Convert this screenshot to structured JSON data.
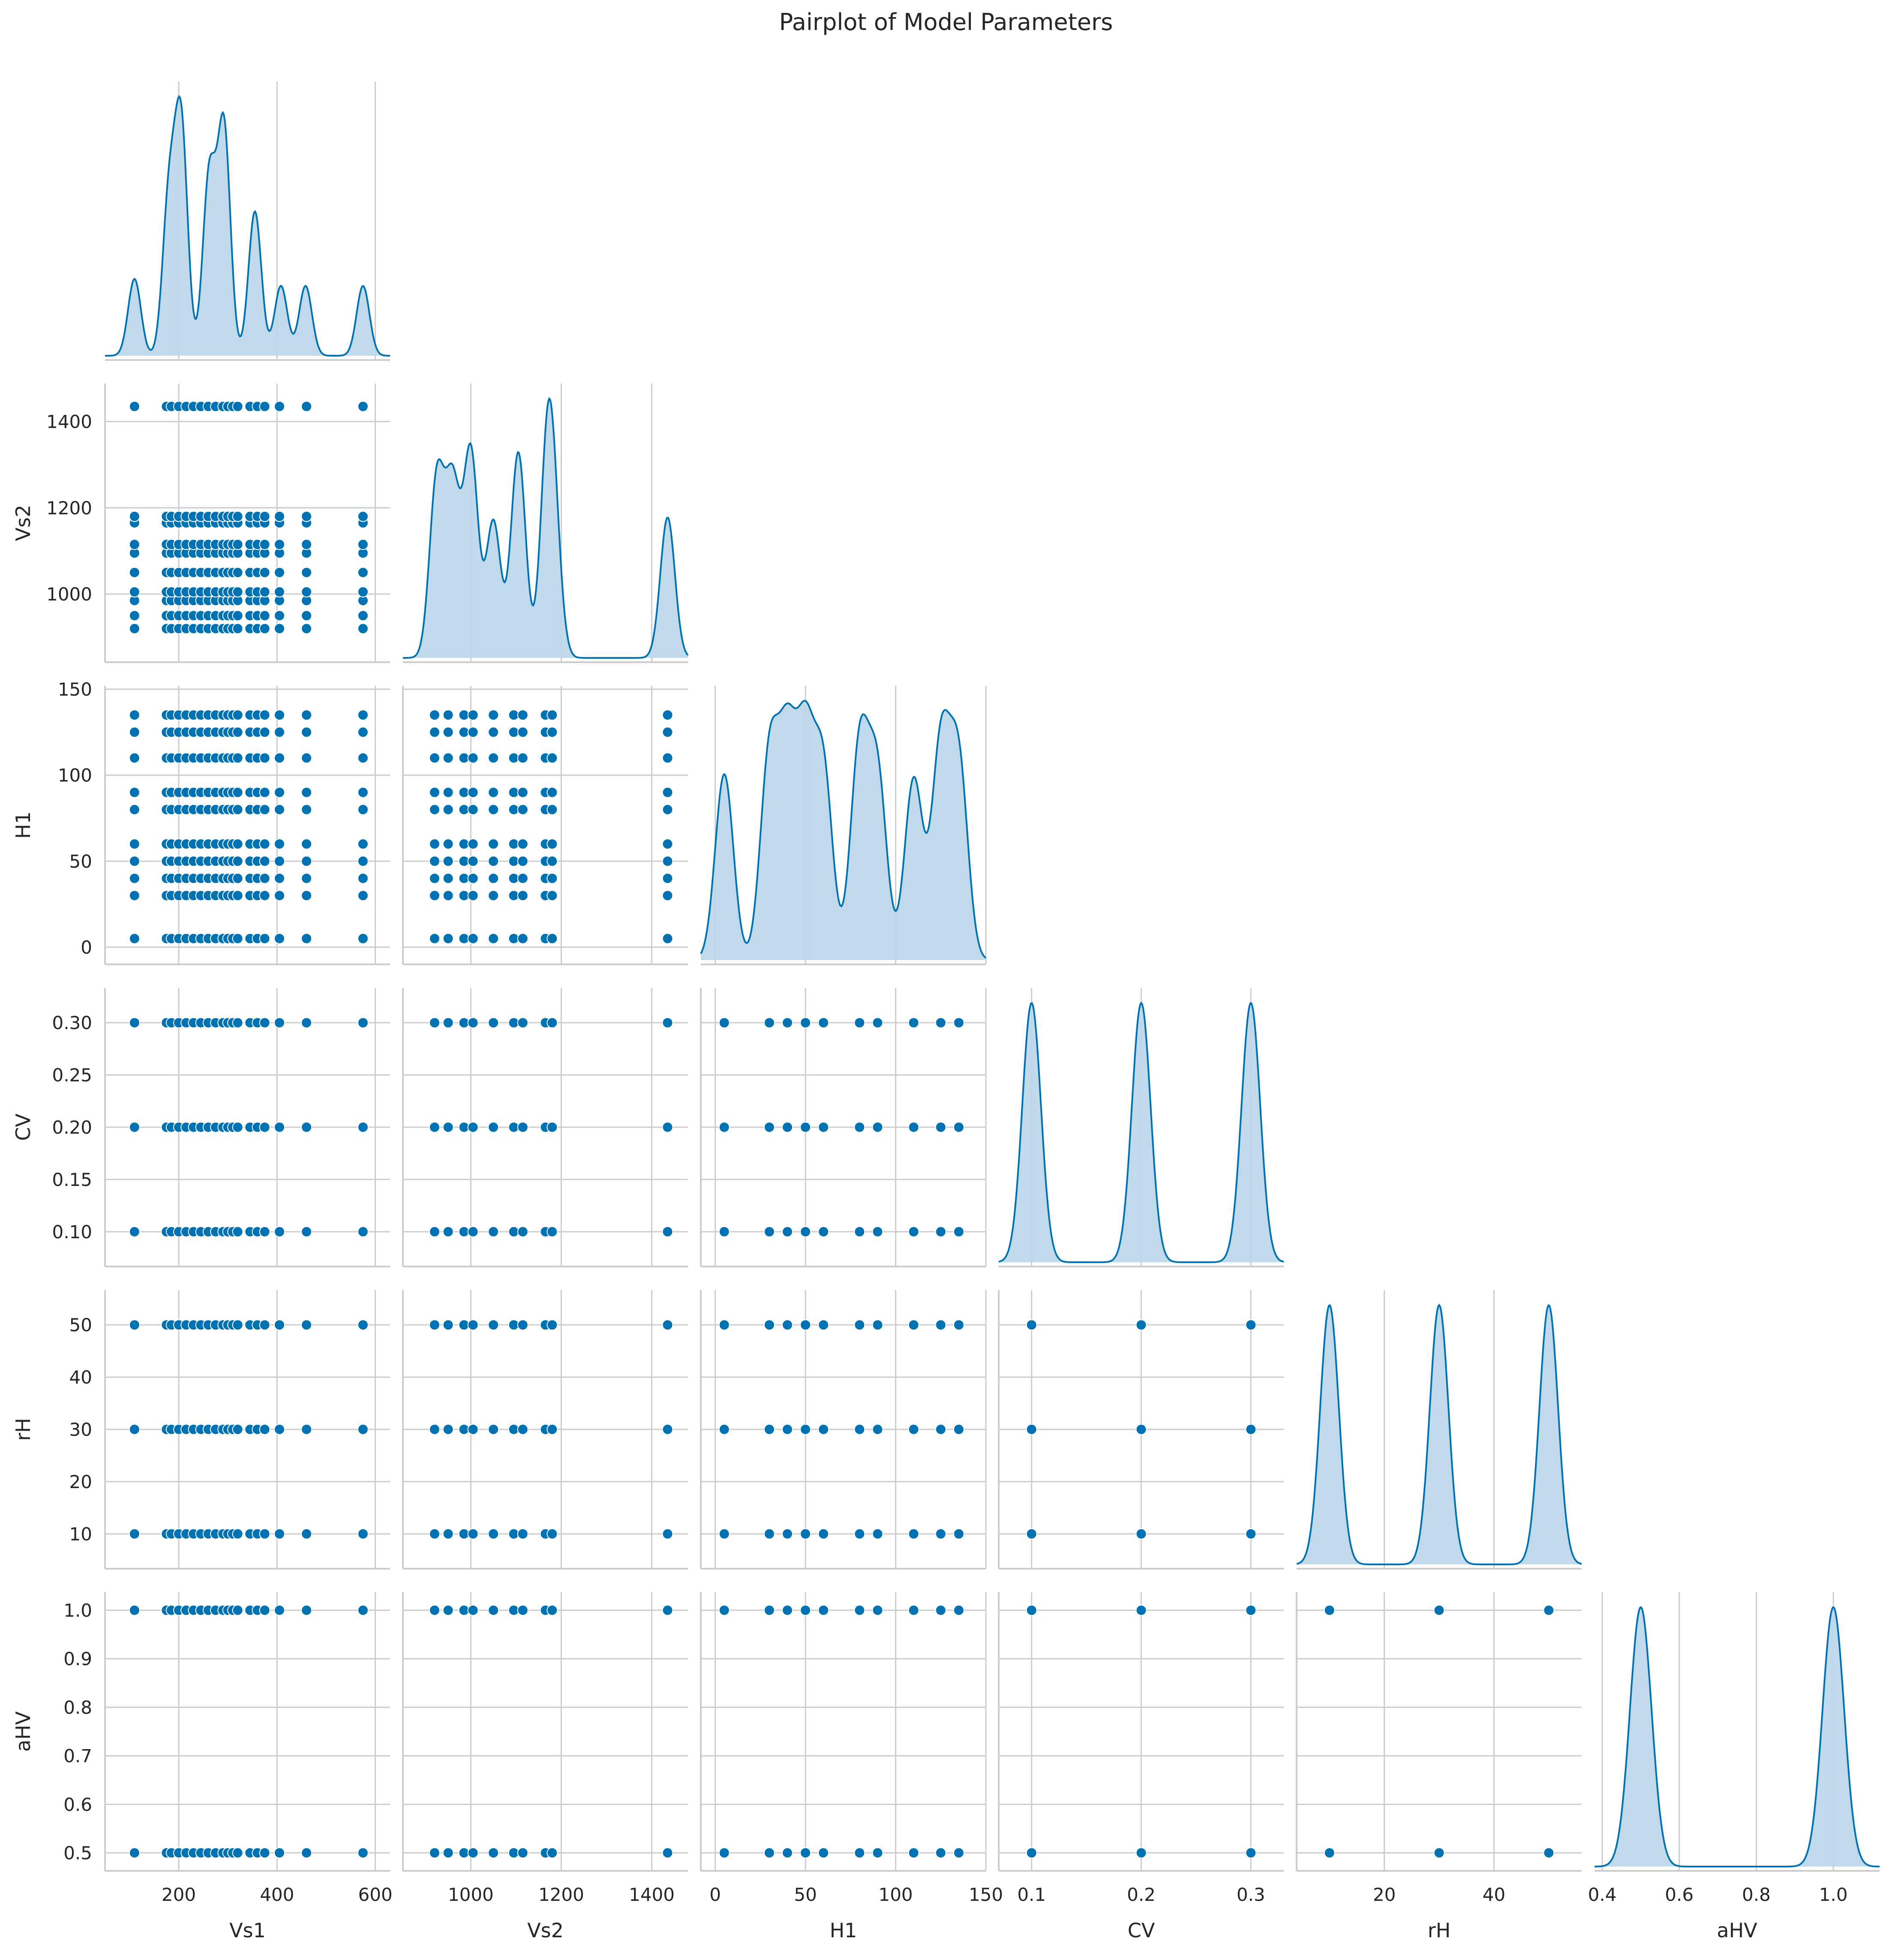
{
  "chart_data": {
    "type": "pairplot",
    "title": "Pairplot of Model Parameters",
    "corner": true,
    "grid": true,
    "color": "#0072b2",
    "kde_fill": "#bdd7ea",
    "variables": [
      {
        "name": "Vs1",
        "range": [
          50,
          630
        ],
        "ticks": [
          {
            "v": 200,
            "label": "200"
          },
          {
            "v": 400,
            "label": "400"
          },
          {
            "v": 600,
            "label": "600"
          }
        ],
        "values": [
          110,
          175,
          185,
          200,
          215,
          230,
          245,
          260,
          275,
          290,
          300,
          310,
          320,
          345,
          360,
          375,
          405,
          460,
          575
        ],
        "kde_peaks": [
          [
            110,
            0.33
          ],
          [
            180,
            0.66
          ],
          [
            205,
            0.98
          ],
          [
            262,
            0.77
          ],
          [
            292,
            0.98
          ],
          [
            355,
            0.62
          ],
          [
            408,
            0.3
          ],
          [
            458,
            0.3
          ],
          [
            575,
            0.3
          ]
        ],
        "kde_bw": 13
      },
      {
        "name": "Vs2",
        "range": [
          850,
          1480
        ],
        "ticks": [
          {
            "v": 1000,
            "label": "1000"
          },
          {
            "v": 1200,
            "label": "1200"
          },
          {
            "v": 1400,
            "label": "1400"
          }
        ],
        "values": [
          920,
          950,
          985,
          1005,
          1050,
          1095,
          1115,
          1165,
          1180,
          1435
        ],
        "kde_peaks": [
          [
            925,
            0.85
          ],
          [
            960,
            0.8
          ],
          [
            1000,
            0.98
          ],
          [
            1050,
            0.65
          ],
          [
            1105,
            0.98
          ],
          [
            1170,
            0.95
          ],
          [
            1185,
            0.4
          ],
          [
            1435,
            0.67
          ]
        ],
        "kde_bw": 16
      },
      {
        "name": "H1",
        "range": [
          -8,
          150
        ],
        "ticks": [
          {
            "v": 0,
            "label": "0"
          },
          {
            "v": 50,
            "label": "50"
          },
          {
            "v": 100,
            "label": "100"
          },
          {
            "v": 150,
            "label": "150"
          }
        ],
        "values": [
          5,
          30,
          40,
          50,
          60,
          80,
          90,
          110,
          125,
          135
        ],
        "kde_peaks": [
          [
            5,
            0.72
          ],
          [
            30,
            0.78
          ],
          [
            40,
            0.78
          ],
          [
            50,
            0.8
          ],
          [
            60,
            0.72
          ],
          [
            80,
            0.82
          ],
          [
            90,
            0.7
          ],
          [
            110,
            0.7
          ],
          [
            125,
            0.82
          ],
          [
            135,
            0.75
          ]
        ],
        "kde_bw": 5
      },
      {
        "name": "CV",
        "range": [
          0.07,
          0.33
        ],
        "ticks": [
          {
            "v": 0.1,
            "label": "0.10"
          },
          {
            "v": 0.15,
            "label": "0.15"
          },
          {
            "v": 0.2,
            "label": "0.20"
          },
          {
            "v": 0.25,
            "label": "0.25"
          },
          {
            "v": 0.3,
            "label": "0.30"
          }
        ],
        "xticks": [
          {
            "v": 0.1,
            "label": "0.1"
          },
          {
            "v": 0.2,
            "label": "0.2"
          },
          {
            "v": 0.3,
            "label": "0.3"
          }
        ],
        "values": [
          0.1,
          0.2,
          0.3
        ],
        "kde_peaks": [
          [
            0.1,
            1
          ],
          [
            0.2,
            1
          ],
          [
            0.3,
            1
          ]
        ],
        "kde_bw": 0.0085
      },
      {
        "name": "rH",
        "range": [
          4,
          56
        ],
        "ticks": [
          {
            "v": 10,
            "label": "10"
          },
          {
            "v": 20,
            "label": "20"
          },
          {
            "v": 30,
            "label": "30"
          },
          {
            "v": 40,
            "label": "40"
          },
          {
            "v": 50,
            "label": "50"
          }
        ],
        "xticks": [
          {
            "v": 20,
            "label": "20"
          },
          {
            "v": 40,
            "label": "40"
          }
        ],
        "values": [
          10,
          30,
          50
        ],
        "kde_peaks": [
          [
            10,
            1
          ],
          [
            30,
            1
          ],
          [
            50,
            1
          ]
        ],
        "kde_bw": 1.7
      },
      {
        "name": "aHV",
        "range": [
          0.47,
          1.03
        ],
        "ticks": [
          {
            "v": 0.5,
            "label": "0.5"
          },
          {
            "v": 0.6,
            "label": "0.6"
          },
          {
            "v": 0.7,
            "label": "0.7"
          },
          {
            "v": 0.8,
            "label": "0.8"
          },
          {
            "v": 0.9,
            "label": "0.9"
          },
          {
            "v": 1.0,
            "label": "1.0"
          }
        ],
        "values": [
          0.5,
          1.0
        ],
        "diag_range": [
          0.38,
          1.12
        ],
        "xticks": [
          {
            "v": 0.4,
            "label": "0.4"
          },
          {
            "v": 0.6,
            "label": "0.6"
          },
          {
            "v": 0.8,
            "label": "0.8"
          },
          {
            "v": 1.0,
            "label": "1.0"
          }
        ],
        "kde_peaks": [
          [
            0.5,
            1
          ],
          [
            1.0,
            1
          ]
        ],
        "kde_bw": 0.028
      }
    ]
  }
}
